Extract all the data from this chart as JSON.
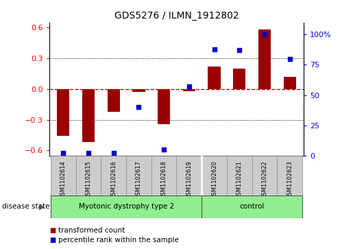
{
  "title": "GDS5276 / ILMN_1912802",
  "samples": [
    "GSM1102614",
    "GSM1102615",
    "GSM1102616",
    "GSM1102617",
    "GSM1102618",
    "GSM1102619",
    "GSM1102620",
    "GSM1102621",
    "GSM1102622",
    "GSM1102623"
  ],
  "transformed_count": [
    -0.46,
    -0.52,
    -0.22,
    -0.03,
    -0.34,
    -0.02,
    0.22,
    0.2,
    0.58,
    0.12
  ],
  "percentile_rank": [
    2,
    2,
    2,
    40,
    5,
    57,
    88,
    87,
    100,
    80
  ],
  "groups": [
    {
      "label": "Myotonic dystrophy type 2",
      "start": 0,
      "end": 5,
      "color": "#90EE90"
    },
    {
      "label": "control",
      "start": 6,
      "end": 9,
      "color": "#90EE90"
    }
  ],
  "ylim_left": [
    -0.65,
    0.65
  ],
  "ylim_right": [
    0,
    110
  ],
  "yticks_left": [
    -0.6,
    -0.3,
    0.0,
    0.3,
    0.6
  ],
  "yticks_right": [
    0,
    25,
    50,
    75,
    100
  ],
  "yticklabels_right": [
    "0",
    "25",
    "50",
    "75",
    "100%"
  ],
  "bar_color": "#990000",
  "dot_color": "#0000CC",
  "zero_line_color": "#CC0000",
  "dotted_line_color": "#000000",
  "legend_items": [
    {
      "label": "transformed count",
      "color": "#990000"
    },
    {
      "label": "percentile rank within the sample",
      "color": "#0000CC"
    }
  ],
  "disease_state_label": "disease state",
  "bar_width": 0.5,
  "n_disease": 6,
  "n_control": 4,
  "separator_idx": 5.5
}
